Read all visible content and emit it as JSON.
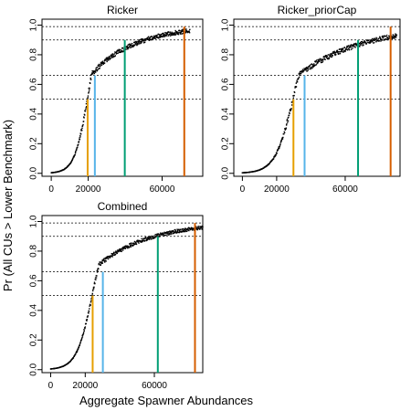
{
  "figure": {
    "ylabel": "Pr (All CUs > Lower Benchmark)",
    "xlabel": "Aggregate Spawner Abundances"
  },
  "chart_data": [
    {
      "type": "scatter",
      "title": "Ricker",
      "xlim": [
        -5000,
        82000
      ],
      "ylim": [
        -0.02,
        1.04
      ],
      "xticks": [
        0,
        20000,
        60000
      ],
      "xtick_labels": [
        "0",
        "20000",
        "60000"
      ],
      "yticks": [
        0.0,
        0.2,
        0.4,
        0.6,
        0.8,
        1.0
      ],
      "ytick_labels": [
        "0.0",
        "0.2",
        "0.4",
        "0.6",
        "0.8",
        "1.0"
      ],
      "hlines": [
        0.5,
        0.66,
        0.9,
        0.99
      ],
      "curve": {
        "midpoint": 19500,
        "scale": 3500,
        "plateau": 22000,
        "tail_rate": 4.1e-05,
        "x_min": 0,
        "x_max": 75000,
        "noise": 0.018
      },
      "benchmarks": [
        {
          "x": 19700,
          "y": 0.5,
          "color": "#E69F00"
        },
        {
          "x": 23600,
          "y": 0.66,
          "color": "#56B4E9"
        },
        {
          "x": 39800,
          "y": 0.9,
          "color": "#009E73"
        },
        {
          "x": 72000,
          "y": 0.99,
          "color": "#D55E00"
        }
      ]
    },
    {
      "type": "scatter",
      "title": "Ricker_priorCap",
      "xlim": [
        -5000,
        92000
      ],
      "ylim": [
        -0.02,
        1.04
      ],
      "xticks": [
        0,
        20000,
        60000
      ],
      "xtick_labels": [
        "0",
        "20000",
        "60000"
      ],
      "yticks": [
        0.0,
        0.2,
        0.4,
        0.6,
        0.8,
        1.0
      ],
      "ytick_labels": [
        "0.0",
        "0.2",
        "0.4",
        "0.6",
        "0.8",
        "1.0"
      ],
      "hlines": [
        0.5,
        0.66,
        0.9,
        0.99
      ],
      "curve": {
        "midpoint": 29500,
        "scale": 5200,
        "plateau": 33000,
        "tail_rate": 2.7e-05,
        "x_min": 0,
        "x_max": 90000,
        "noise": 0.02
      },
      "benchmarks": [
        {
          "x": 29800,
          "y": 0.5,
          "color": "#E69F00"
        },
        {
          "x": 36300,
          "y": 0.66,
          "color": "#56B4E9"
        },
        {
          "x": 67500,
          "y": 0.9,
          "color": "#009E73"
        },
        {
          "x": 86500,
          "y": 0.99,
          "color": "#D55E00"
        }
      ]
    },
    {
      "type": "scatter",
      "title": "Combined",
      "xlim": [
        -5000,
        88000
      ],
      "ylim": [
        -0.02,
        1.04
      ],
      "xticks": [
        0,
        20000,
        60000
      ],
      "xtick_labels": [
        "0",
        "20000",
        "60000"
      ],
      "yticks": [
        0.0,
        0.2,
        0.4,
        0.6,
        0.8,
        1.0
      ],
      "ytick_labels": [
        "0.0",
        "0.2",
        "0.4",
        "0.6",
        "0.8",
        "1.0"
      ],
      "hlines": [
        0.5,
        0.66,
        0.9,
        0.99
      ],
      "curve": {
        "midpoint": 24000,
        "scale": 4500,
        "plateau": 28000,
        "tail_rate": 3.3e-05,
        "x_min": 0,
        "x_max": 88000,
        "noise": 0.015
      },
      "benchmarks": [
        {
          "x": 24300,
          "y": 0.5,
          "color": "#E69F00"
        },
        {
          "x": 30200,
          "y": 0.66,
          "color": "#56B4E9"
        },
        {
          "x": 62000,
          "y": 0.9,
          "color": "#009E73"
        },
        {
          "x": 83500,
          "y": 0.99,
          "color": "#D55E00"
        }
      ]
    }
  ]
}
